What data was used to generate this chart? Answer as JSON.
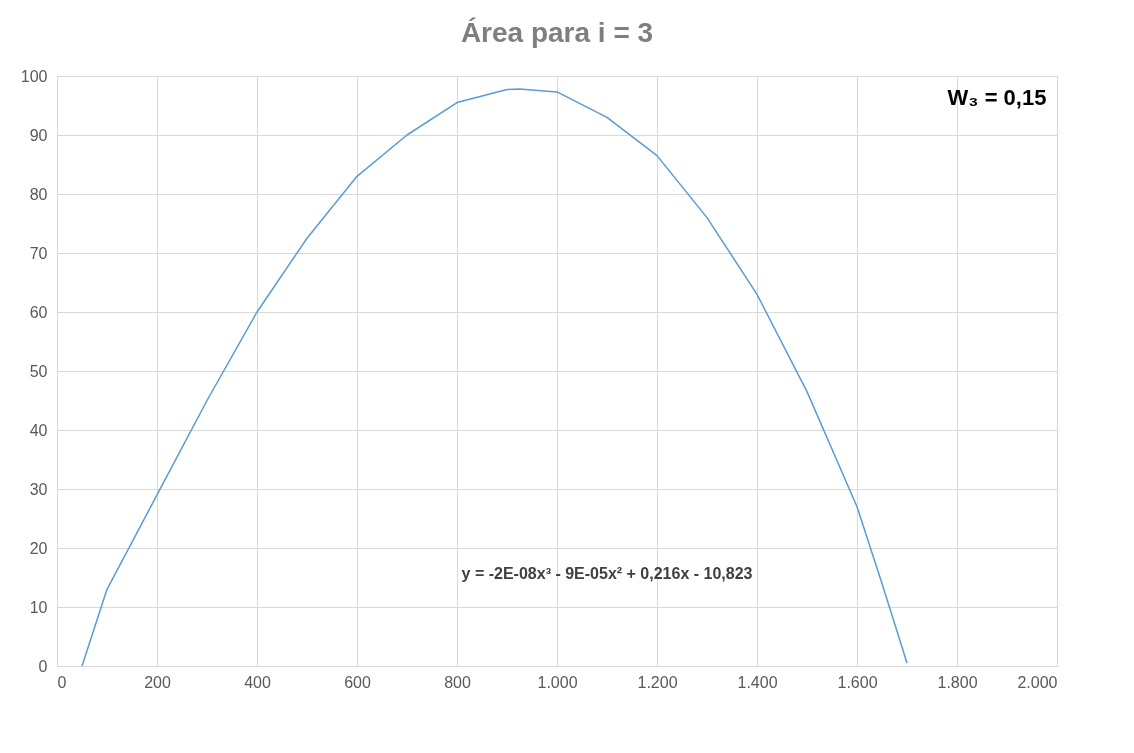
{
  "chart_data": {
    "type": "line",
    "title": "Área para i = 3",
    "x": [
      50,
      100,
      200,
      300,
      400,
      500,
      600,
      700,
      800,
      900,
      925,
      1000,
      1100,
      1200,
      1300,
      1400,
      1500,
      1600,
      1650,
      1700
    ],
    "series": [
      {
        "color": "#5b9bd5",
        "values": [
          0,
          13,
          29,
          45,
          60,
          72.5,
          83,
          90,
          95.5,
          97.7,
          97.8,
          97.3,
          93,
          86.5,
          76,
          63,
          46.5,
          27,
          14,
          0.5
        ]
      }
    ],
    "xlim": [
      0,
      2000
    ],
    "xticks": [
      0,
      200,
      400,
      600,
      800,
      {
        "value": 1000,
        "label": "1.000"
      },
      {
        "value": 1200,
        "label": "1.200"
      },
      {
        "value": 1400,
        "label": "1.400"
      },
      {
        "value": 1600,
        "label": "1.600"
      },
      {
        "value": 1800,
        "label": "1.800"
      },
      {
        "value": 2000,
        "label": "2.000"
      }
    ],
    "ylim": [
      0,
      100
    ],
    "yticks": [
      0,
      10,
      20,
      30,
      40,
      50,
      60,
      70,
      80,
      90,
      100
    ],
    "grid": true,
    "marker": "none",
    "line_style": "solid",
    "annotations": [
      "W₃ = 0,15",
      "y = -2E-08x³ - 9E-05x² + 0,216x - 10,823"
    ]
  }
}
